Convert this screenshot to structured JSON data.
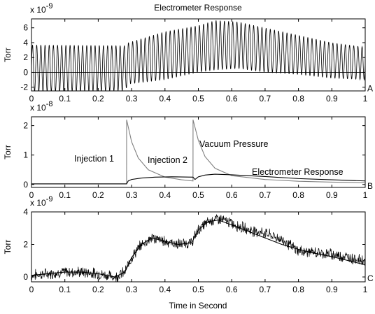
{
  "figure": {
    "title": "Electrometer Response",
    "xlabel": "Time in Second"
  },
  "chart_data": [
    {
      "type": "line",
      "panel_tag": "A",
      "ylabel": "Torr",
      "exponent": "x 10",
      "exponent_power": "-9",
      "xlim": [
        0,
        1
      ],
      "ylim": [
        -2.5,
        7.2
      ],
      "xticks": [
        0,
        0.1,
        0.2,
        0.3,
        0.4,
        0.5,
        0.6,
        0.7,
        0.8,
        0.9,
        1
      ],
      "xtick_labels": [
        "0",
        "0.1",
        "0.2",
        "0.3",
        "0.4",
        "0.5",
        "0.6",
        "0.7",
        "0.8",
        "0.9",
        "1"
      ],
      "yticks": [
        -2,
        0,
        2,
        4,
        6
      ],
      "ytick_labels": [
        "-2",
        "0",
        "2",
        "4",
        "6"
      ],
      "reference_line_y": 0,
      "series": [
        {
          "signal": "oscillating",
          "cycles": 80,
          "envelope_x": [
            0,
            0.28,
            0.29,
            0.4,
            0.5,
            0.55,
            0.62,
            0.7,
            0.8,
            0.9,
            1.0
          ],
          "upper": [
            3.7,
            3.6,
            4.0,
            5.5,
            6.3,
            7.0,
            6.8,
            6.0,
            5.0,
            4.0,
            3.4
          ],
          "lower": [
            -2.6,
            -2.5,
            -1.6,
            -1.0,
            0.0,
            0.3,
            0.5,
            0.0,
            -0.3,
            -0.8,
            -1.0
          ]
        }
      ]
    },
    {
      "type": "line",
      "panel_tag": "B",
      "ylabel": "Torr",
      "exponent": "x 10",
      "exponent_power": "-8",
      "xlim": [
        0,
        1
      ],
      "ylim": [
        -0.1,
        2.3
      ],
      "xticks": [
        0,
        0.1,
        0.2,
        0.3,
        0.4,
        0.5,
        0.6,
        0.7,
        0.8,
        0.9,
        1
      ],
      "xtick_labels": [
        "0",
        "0.1",
        "0.2",
        "0.3",
        "0.4",
        "0.5",
        "0.6",
        "0.7",
        "0.8",
        "0.9",
        "1"
      ],
      "yticks": [
        0,
        1,
        2
      ],
      "ytick_labels": [
        "0",
        "1",
        "2"
      ],
      "annotations": [
        "Injection 1",
        "Injection 2",
        "Vacuum Pressure",
        "Electrometer Response"
      ],
      "series": [
        {
          "label": "Vacuum Pressure",
          "color": "#808080",
          "x": [
            0,
            0.285,
            0.2851,
            0.3,
            0.32,
            0.35,
            0.4,
            0.45,
            0.484,
            0.4841,
            0.5,
            0.52,
            0.55,
            0.6,
            0.7,
            0.8,
            0.9,
            1.0
          ],
          "y": [
            0.02,
            0.02,
            2.2,
            1.45,
            0.9,
            0.5,
            0.25,
            0.16,
            0.12,
            2.2,
            1.5,
            0.95,
            0.55,
            0.3,
            0.17,
            0.11,
            0.08,
            0.06
          ]
        },
        {
          "label": "Electrometer Response",
          "color": "#000000",
          "x": [
            0,
            0.285,
            0.29,
            0.3,
            0.33,
            0.37,
            0.42,
            0.484,
            0.49,
            0.5,
            0.52,
            0.55,
            0.6,
            0.7,
            0.8,
            0.9,
            1.0
          ],
          "y": [
            0.02,
            0.02,
            0.12,
            0.17,
            0.22,
            0.25,
            0.26,
            0.25,
            0.17,
            0.26,
            0.32,
            0.35,
            0.33,
            0.27,
            0.2,
            0.16,
            0.12
          ]
        }
      ]
    },
    {
      "type": "line",
      "panel_tag": "C",
      "ylabel": "Torr",
      "exponent": "x 10",
      "exponent_power": "-9",
      "xlim": [
        0,
        1
      ],
      "ylim": [
        -0.3,
        4.0
      ],
      "xticks": [
        0,
        0.1,
        0.2,
        0.3,
        0.4,
        0.5,
        0.6,
        0.7,
        0.8,
        0.9,
        1
      ],
      "xtick_labels": [
        "0",
        "0.1",
        "0.2",
        "0.3",
        "0.4",
        "0.5",
        "0.6",
        "0.7",
        "0.8",
        "0.9",
        "1"
      ],
      "yticks": [
        0,
        2,
        4
      ],
      "ytick_labels": [
        "0",
        "2",
        "4"
      ],
      "series": [
        {
          "style": "noisy",
          "color": "#000000",
          "x": [
            0,
            0.05,
            0.1,
            0.15,
            0.2,
            0.25,
            0.28,
            0.3,
            0.33,
            0.36,
            0.4,
            0.44,
            0.48,
            0.5,
            0.53,
            0.56,
            0.6,
            0.65,
            0.7,
            0.75,
            0.8,
            0.85,
            0.9,
            0.95,
            1.0
          ],
          "y": [
            0.1,
            0.2,
            0.3,
            0.3,
            0.2,
            0.0,
            0.3,
            1.2,
            2.0,
            2.4,
            2.2,
            2.0,
            2.1,
            2.9,
            3.4,
            3.6,
            3.3,
            2.9,
            2.7,
            2.3,
            1.6,
            1.5,
            1.4,
            1.2,
            1.0
          ]
        },
        {
          "style": "smooth",
          "color": "#000000",
          "x": [
            0,
            0.05,
            0.1,
            0.15,
            0.2,
            0.25,
            0.28,
            0.3,
            0.33,
            0.36,
            0.4,
            0.44,
            0.48,
            0.5,
            0.53,
            0.56,
            0.6,
            0.65,
            0.7,
            0.75,
            0.8,
            0.85,
            0.9,
            0.95,
            1.0
          ],
          "y": [
            0.1,
            0.2,
            0.3,
            0.3,
            0.2,
            0.0,
            0.3,
            1.2,
            2.0,
            2.4,
            2.2,
            2.0,
            2.1,
            2.9,
            3.4,
            3.5,
            3.2,
            2.8,
            2.4,
            2.0,
            1.7,
            1.45,
            1.25,
            1.0,
            0.75
          ]
        }
      ]
    }
  ]
}
